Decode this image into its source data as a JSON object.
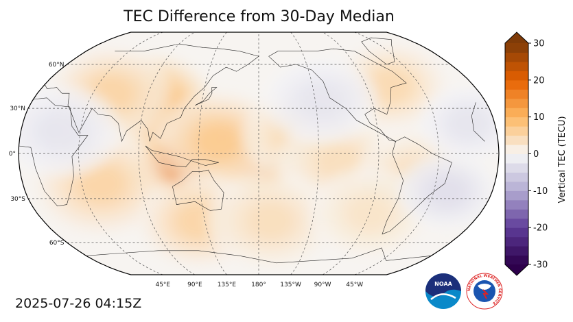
{
  "title": "TEC Difference from 30-Day Median",
  "timestamp": "2025-07-26 04:15Z",
  "map": {
    "projection": "robinson",
    "central_longitude": 180,
    "lat_labels": [
      {
        "lat": 60,
        "text": "60°N"
      },
      {
        "lat": 30,
        "text": "30°N"
      },
      {
        "lat": 0,
        "text": "0°"
      },
      {
        "lat": -30,
        "text": "30°S"
      },
      {
        "lat": -60,
        "text": "60°S"
      }
    ],
    "lon_labels": [
      {
        "lon": 45,
        "text": "45°E"
      },
      {
        "lon": 90,
        "text": "90°E"
      },
      {
        "lon": 135,
        "text": "135°E"
      },
      {
        "lon": 180,
        "text": "180°"
      },
      {
        "lon": 225,
        "text": "135°W"
      },
      {
        "lon": 270,
        "text": "90°W"
      },
      {
        "lon": 315,
        "text": "45°W"
      }
    ],
    "anomalies": [
      {
        "lon": 112,
        "lat": 20,
        "value": 22,
        "spread": 1.0
      },
      {
        "lon": 95,
        "lat": 35,
        "value": 12,
        "spread": 1.3
      },
      {
        "lon": 118,
        "lat": -8,
        "value": 24,
        "spread": 0.9
      },
      {
        "lon": 178,
        "lat": -8,
        "value": 16,
        "spread": 0.9
      },
      {
        "lon": 150,
        "lat": 8,
        "value": 9,
        "spread": 1.4
      },
      {
        "lon": 210,
        "lat": 12,
        "value": 6,
        "spread": 1.2
      },
      {
        "lon": 240,
        "lat": -5,
        "value": 5,
        "spread": 1.3
      },
      {
        "lon": 300,
        "lat": -15,
        "value": 5,
        "spread": 1.3
      },
      {
        "lon": 60,
        "lat": -20,
        "value": 7,
        "spread": 1.5
      },
      {
        "lon": 130,
        "lat": -45,
        "value": 7,
        "spread": 1.3
      },
      {
        "lon": 190,
        "lat": -45,
        "value": 5,
        "spread": 1.4
      },
      {
        "lon": 270,
        "lat": -40,
        "value": 4,
        "spread": 1.3
      },
      {
        "lon": 60,
        "lat": 40,
        "value": 7,
        "spread": 1.3
      },
      {
        "lon": 290,
        "lat": 45,
        "value": 6,
        "spread": 1.2
      },
      {
        "lon": 30,
        "lat": 15,
        "value": -3,
        "spread": 1.3
      },
      {
        "lon": 230,
        "lat": 35,
        "value": -3,
        "spread": 1.2
      },
      {
        "lon": 325,
        "lat": -25,
        "value": -4,
        "spread": 1.0
      },
      {
        "lon": 340,
        "lat": 20,
        "value": -3,
        "spread": 1.0
      }
    ]
  },
  "colorbar": {
    "label": "Vertical TEC (TECU)",
    "min": -30,
    "max": 30,
    "ticks": [
      "30",
      "20",
      "10",
      "0",
      "-10",
      "-20",
      "-30"
    ],
    "stops": [
      {
        "v": -30,
        "color": "#2d004b"
      },
      {
        "v": -20,
        "color": "#5e3c99"
      },
      {
        "v": -10,
        "color": "#b2abd2"
      },
      {
        "v": 0,
        "color": "#f7f7f7"
      },
      {
        "v": 10,
        "color": "#fdb863"
      },
      {
        "v": 20,
        "color": "#e66101"
      },
      {
        "v": 30,
        "color": "#7f3b08"
      }
    ]
  },
  "logos": {
    "noaa_text": "NOAA",
    "nws_text": "NATIONAL WEATHER SERVICE"
  }
}
